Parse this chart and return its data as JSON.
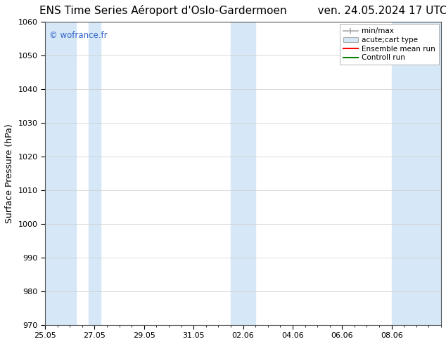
{
  "title": "ENS Time Series Aéroport d'Oslo-Gardermoen         ven. 24.05.2024 17 UTC",
  "ylabel": "Surface Pressure (hPa)",
  "ylim": [
    970,
    1060
  ],
  "yticks": [
    970,
    980,
    990,
    1000,
    1010,
    1020,
    1030,
    1040,
    1050,
    1060
  ],
  "xlim_start": 0,
  "xlim_end": 16,
  "xtick_labels": [
    "25.05",
    "27.05",
    "29.05",
    "31.05",
    "02.06",
    "04.06",
    "06.06",
    "08.06"
  ],
  "xtick_positions": [
    0,
    2,
    4,
    6,
    8,
    10,
    12,
    14
  ],
  "shaded_bands": [
    {
      "x_start": 0.0,
      "x_end": 1.25
    },
    {
      "x_start": 1.75,
      "x_end": 2.25
    },
    {
      "x_start": 7.5,
      "x_end": 8.5
    },
    {
      "x_start": 14.0,
      "x_end": 16.0
    }
  ],
  "shade_color": "#d6e8f7",
  "watermark": "© wofrance.fr",
  "watermark_color": "#3366cc",
  "legend_entries": [
    {
      "label": "min/max",
      "color_line": "#aaaaaa"
    },
    {
      "label": "acute;cart type",
      "color_box": "#d6e8f7",
      "color_edge": "#aaaaaa"
    },
    {
      "label": "Ensemble mean run",
      "color_line": "red"
    },
    {
      "label": "Controll run",
      "color_line": "green"
    }
  ],
  "bg_color": "#ffffff",
  "plot_bg_color": "#ffffff",
  "grid_color": "#cccccc",
  "title_fontsize": 11,
  "label_fontsize": 9,
  "tick_fontsize": 8,
  "legend_fontsize": 7.5
}
